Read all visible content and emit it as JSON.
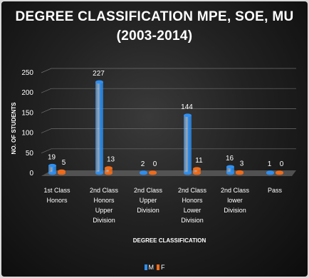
{
  "chart_data": {
    "type": "bar",
    "title_lines": [
      "DEGREE CLASSIFICATION MPE, SOE, MU",
      "(2003-2014)"
    ],
    "xlabel": "DEGREE CLASSIFICATION",
    "ylabel": "NO. OF STUDENTS",
    "ylim": [
      0,
      250
    ],
    "yticks": [
      0,
      50,
      100,
      150,
      200,
      250
    ],
    "grid": true,
    "legend_position": "bottom",
    "categories": [
      [
        "1st Class",
        "Honors"
      ],
      [
        "2nd Class",
        "Honors",
        "Upper",
        "Division"
      ],
      [
        "2nd Class",
        "Upper",
        "Division"
      ],
      [
        "2nd Class",
        "Honors",
        "Lower",
        "Division"
      ],
      [
        "2nd Class",
        "lower",
        "Division"
      ],
      [
        "Pass"
      ]
    ],
    "series": [
      {
        "name": "M",
        "color": "#2e8ff0",
        "values": [
          19,
          227,
          2,
          144,
          16,
          1
        ]
      },
      {
        "name": "F",
        "color": "#ef6b1a",
        "values": [
          5,
          13,
          0,
          11,
          3,
          0
        ]
      }
    ]
  }
}
